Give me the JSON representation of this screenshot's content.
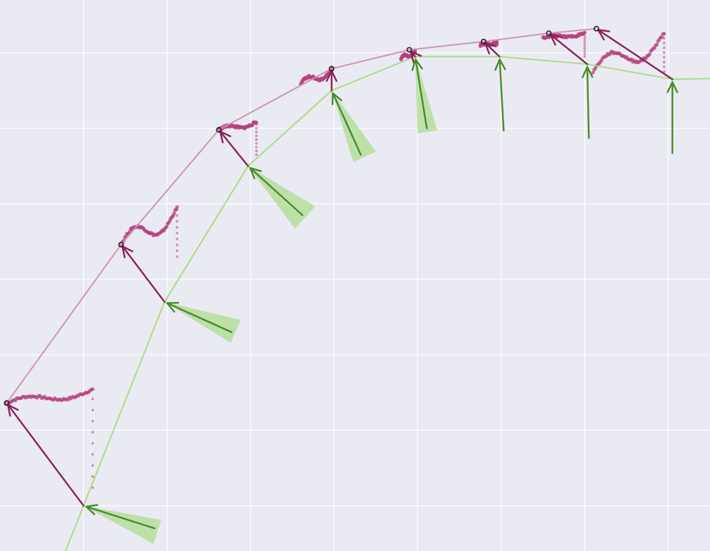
{
  "chart_data": {
    "type": "line",
    "title": "",
    "xlabel": "",
    "ylabel": "",
    "grid": true,
    "legend": "none",
    "colors": {
      "background": "#eaeaf2",
      "grid": "#ffffff",
      "green_line": "#a9dc8a",
      "green_arrow": "#4a8a2c",
      "green_cone": "#a9dc8a",
      "purple_line": "#c997b5",
      "purple_arrow": "#8c1f5e",
      "purple_dots": "#b5427e",
      "marker": "#2b1e26"
    },
    "xlim": [
      -1.0,
      7.5
    ],
    "ylim": [
      -0.6,
      6.7
    ],
    "x_gridlines": [
      0,
      1,
      2,
      3,
      4,
      5,
      6,
      7
    ],
    "y_gridlines": [
      0,
      1,
      2,
      3,
      4,
      5,
      6
    ],
    "series": [
      {
        "points": [
          {
            "x": 0.0,
            "y": 0.0
          },
          {
            "x": 0.97,
            "y": 2.7
          },
          {
            "x": 1.97,
            "y": 4.5
          },
          {
            "x": 2.97,
            "y": 5.5
          },
          {
            "x": 3.97,
            "y": 5.95
          },
          {
            "x": 4.98,
            "y": 5.95
          },
          {
            "x": 6.03,
            "y": 5.85
          },
          {
            "x": 7.05,
            "y": 5.65
          }
        ],
        "arrows": [
          {
            "dx": 0.85,
            "dy": -0.3,
            "cone": [
              0.3,
              0.2
            ]
          },
          {
            "dx": 0.8,
            "dy": -0.4,
            "cone": [
              0.2,
              0.3
            ]
          },
          {
            "dx": 0.65,
            "dy": -0.65,
            "cone": [
              0.3,
              0.3
            ]
          },
          {
            "dx": 0.35,
            "dy": -0.85,
            "cone": [
              0.2,
              0.3
            ]
          },
          {
            "dx": 0.14,
            "dy": -0.95,
            "cone": [
              0.2,
              0.2
            ]
          },
          {
            "dx": 0.05,
            "dy": -0.98,
            "cone": [
              0,
              0
            ]
          },
          {
            "dx": 0.02,
            "dy": -0.98,
            "cone": [
              0,
              0
            ]
          },
          {
            "dx": 0.0,
            "dy": -0.98,
            "cone": [
              0,
              0
            ]
          }
        ]
      },
      {
        "points": [
          {
            "x": -0.92,
            "y": 1.36
          },
          {
            "x": 0.45,
            "y": 3.46
          },
          {
            "x": 1.62,
            "y": 4.98
          },
          {
            "x": 2.97,
            "y": 5.79
          },
          {
            "x": 3.9,
            "y": 6.04
          },
          {
            "x": 4.79,
            "y": 6.15
          },
          {
            "x": 5.57,
            "y": 6.26
          },
          {
            "x": 6.14,
            "y": 6.32
          }
        ],
        "trails": [
          {
            "x0": -0.92,
            "x1": 0.11,
            "ymin": 1.36,
            "ymax": 1.56,
            "hook_to": 0.24
          },
          {
            "x0": 0.45,
            "x1": 1.12,
            "ymin": 3.46,
            "ymax": 4.0,
            "hook_to": 3.3
          },
          {
            "x0": 1.62,
            "x1": 2.07,
            "ymin": 4.98,
            "ymax": 5.1,
            "hook_to": 4.65
          },
          {
            "x0": 2.6,
            "x1": 2.97,
            "ymin": 5.6,
            "ymax": 5.79,
            "hook_to": 5.8
          },
          {
            "x0": 3.8,
            "x1": 3.97,
            "ymin": 5.92,
            "ymax": 6.04,
            "hook_to": 6.0
          },
          {
            "x0": 4.75,
            "x1": 4.95,
            "ymin": 6.1,
            "ymax": 6.15,
            "hook_to": 6.1
          },
          {
            "x0": 5.5,
            "x1": 6.0,
            "ymin": 6.2,
            "ymax": 6.26,
            "hook_to": 5.95
          },
          {
            "x0": 6.1,
            "x1": 6.95,
            "ymin": 5.75,
            "ymax": 6.32,
            "hook_to": 5.75
          }
        ]
      }
    ]
  }
}
